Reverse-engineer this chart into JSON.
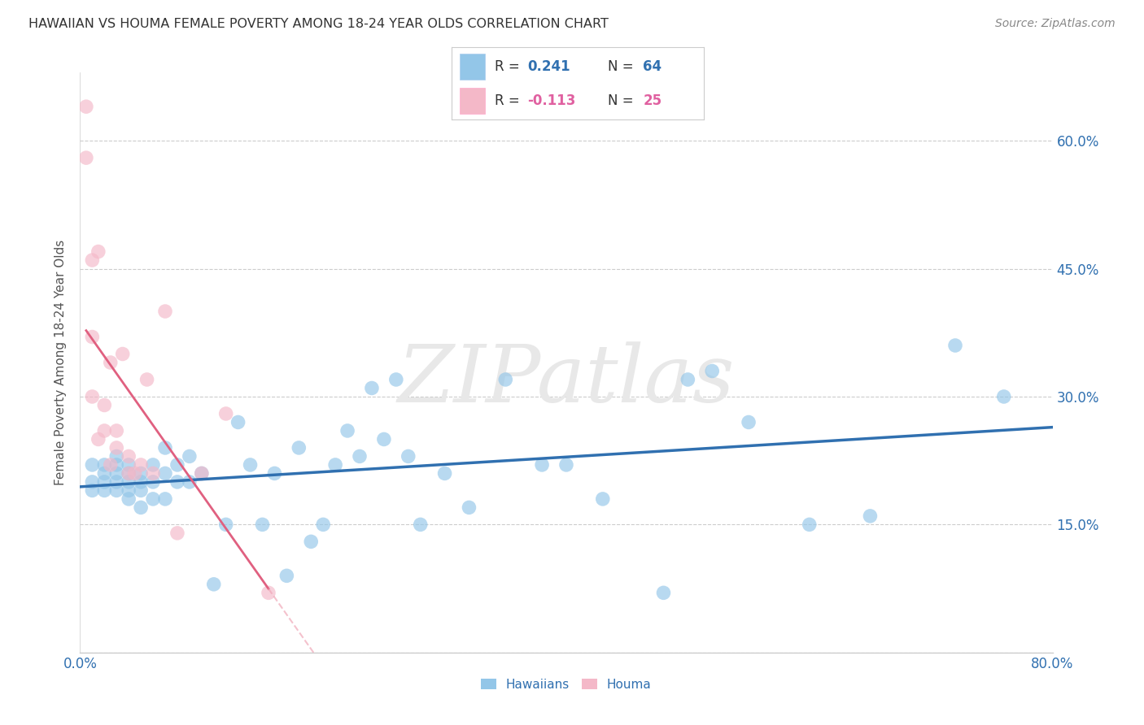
{
  "title": "HAWAIIAN VS HOUMA FEMALE POVERTY AMONG 18-24 YEAR OLDS CORRELATION CHART",
  "source": "Source: ZipAtlas.com",
  "ylabel": "Female Poverty Among 18-24 Year Olds",
  "xlim": [
    0.0,
    0.8
  ],
  "ylim": [
    0.0,
    0.68
  ],
  "yticks": [
    0.0,
    0.15,
    0.3,
    0.45,
    0.6
  ],
  "ytick_labels": [
    "",
    "15.0%",
    "30.0%",
    "45.0%",
    "60.0%"
  ],
  "xticks": [
    0.0,
    0.1,
    0.2,
    0.3,
    0.4,
    0.5,
    0.6,
    0.7,
    0.8
  ],
  "xtick_labels": [
    "0.0%",
    "",
    "",
    "",
    "",
    "",
    "",
    "",
    "80.0%"
  ],
  "hawaiians_color": "#93c6e8",
  "houma_color": "#f4b8c8",
  "hawaiians_line_color": "#3070b0",
  "houma_line_color": "#e06080",
  "houma_line_dash_color": "#f0a8b8",
  "R_hawaiians": 0.241,
  "N_hawaiians": 64,
  "R_houma": -0.113,
  "N_houma": 25,
  "background_color": "#ffffff",
  "watermark": "ZIPatlas",
  "legend_R_color": "#3070b0",
  "legend_N_color": "#3070b0",
  "legend_R_neg_color": "#e060a0",
  "hawaiians_x": [
    0.01,
    0.01,
    0.01,
    0.02,
    0.02,
    0.02,
    0.02,
    0.03,
    0.03,
    0.03,
    0.03,
    0.03,
    0.04,
    0.04,
    0.04,
    0.04,
    0.04,
    0.05,
    0.05,
    0.05,
    0.05,
    0.06,
    0.06,
    0.06,
    0.07,
    0.07,
    0.07,
    0.08,
    0.08,
    0.09,
    0.09,
    0.1,
    0.11,
    0.12,
    0.13,
    0.14,
    0.15,
    0.16,
    0.17,
    0.18,
    0.19,
    0.2,
    0.21,
    0.22,
    0.23,
    0.24,
    0.25,
    0.26,
    0.27,
    0.28,
    0.3,
    0.32,
    0.35,
    0.38,
    0.4,
    0.43,
    0.48,
    0.5,
    0.52,
    0.55,
    0.6,
    0.65,
    0.72,
    0.76
  ],
  "hawaiians_y": [
    0.19,
    0.2,
    0.22,
    0.19,
    0.2,
    0.21,
    0.22,
    0.19,
    0.2,
    0.21,
    0.22,
    0.23,
    0.18,
    0.19,
    0.2,
    0.21,
    0.22,
    0.17,
    0.19,
    0.2,
    0.21,
    0.18,
    0.2,
    0.22,
    0.18,
    0.21,
    0.24,
    0.2,
    0.22,
    0.2,
    0.23,
    0.21,
    0.08,
    0.15,
    0.27,
    0.22,
    0.15,
    0.21,
    0.09,
    0.24,
    0.13,
    0.15,
    0.22,
    0.26,
    0.23,
    0.31,
    0.25,
    0.32,
    0.23,
    0.15,
    0.21,
    0.17,
    0.32,
    0.22,
    0.22,
    0.18,
    0.07,
    0.32,
    0.33,
    0.27,
    0.15,
    0.16,
    0.36,
    0.3
  ],
  "houma_x": [
    0.005,
    0.005,
    0.01,
    0.01,
    0.01,
    0.015,
    0.015,
    0.02,
    0.02,
    0.025,
    0.025,
    0.03,
    0.03,
    0.035,
    0.04,
    0.04,
    0.045,
    0.05,
    0.055,
    0.06,
    0.07,
    0.08,
    0.1,
    0.12,
    0.155
  ],
  "houma_y": [
    0.58,
    0.64,
    0.3,
    0.37,
    0.46,
    0.25,
    0.47,
    0.26,
    0.29,
    0.22,
    0.34,
    0.24,
    0.26,
    0.35,
    0.21,
    0.23,
    0.21,
    0.22,
    0.32,
    0.21,
    0.4,
    0.14,
    0.21,
    0.28,
    0.07
  ]
}
